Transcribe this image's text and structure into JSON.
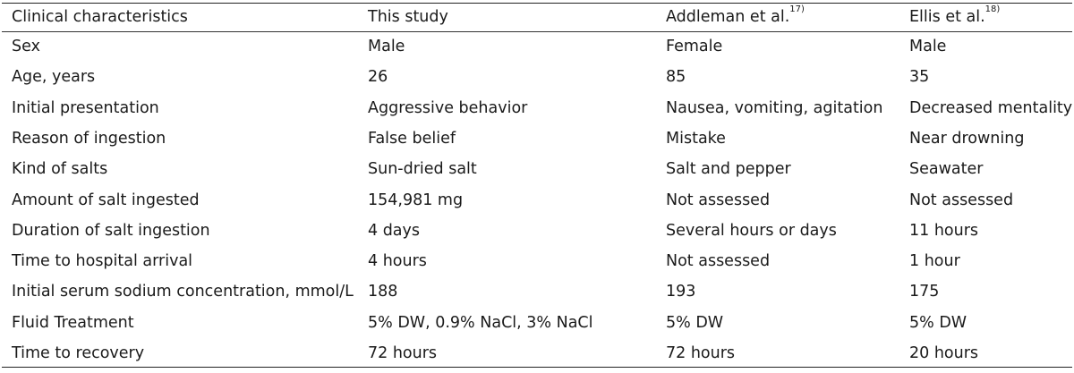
{
  "table": {
    "headers": [
      {
        "text": "Clinical characteristics",
        "sup": ""
      },
      {
        "text": "This study",
        "sup": ""
      },
      {
        "text": "Addleman et al.",
        "sup": "17)"
      },
      {
        "text": "Ellis et al.",
        "sup": "18)"
      }
    ],
    "rows": [
      [
        "Sex",
        "Male",
        "Female",
        "Male"
      ],
      [
        "Age, years",
        "26",
        "85",
        "35"
      ],
      [
        "Initial presentation",
        "Aggressive behavior",
        "Nausea, vomiting, agitation",
        "Decreased mentality"
      ],
      [
        "Reason of ingestion",
        "False belief",
        "Mistake",
        "Near drowning"
      ],
      [
        "Kind of salts",
        "Sun-dried salt",
        "Salt and pepper",
        "Seawater"
      ],
      [
        "Amount of salt ingested",
        "154,981 mg",
        "Not assessed",
        "Not assessed"
      ],
      [
        "Duration of salt ingestion",
        "4 days",
        "Several hours or days",
        "11 hours"
      ],
      [
        "Time to hospital arrival",
        "4 hours",
        "Not assessed",
        " 1 hour"
      ],
      [
        "Initial serum sodium concentration, mmol/L",
        "188",
        "193",
        "175"
      ],
      [
        "Fluid Treatment",
        "5% DW, 0.9% NaCl, 3% NaCl",
        "5% DW",
        "5% DW"
      ],
      [
        "Time to recovery",
        "72 hours",
        "72 hours",
        "20 hours"
      ]
    ]
  }
}
